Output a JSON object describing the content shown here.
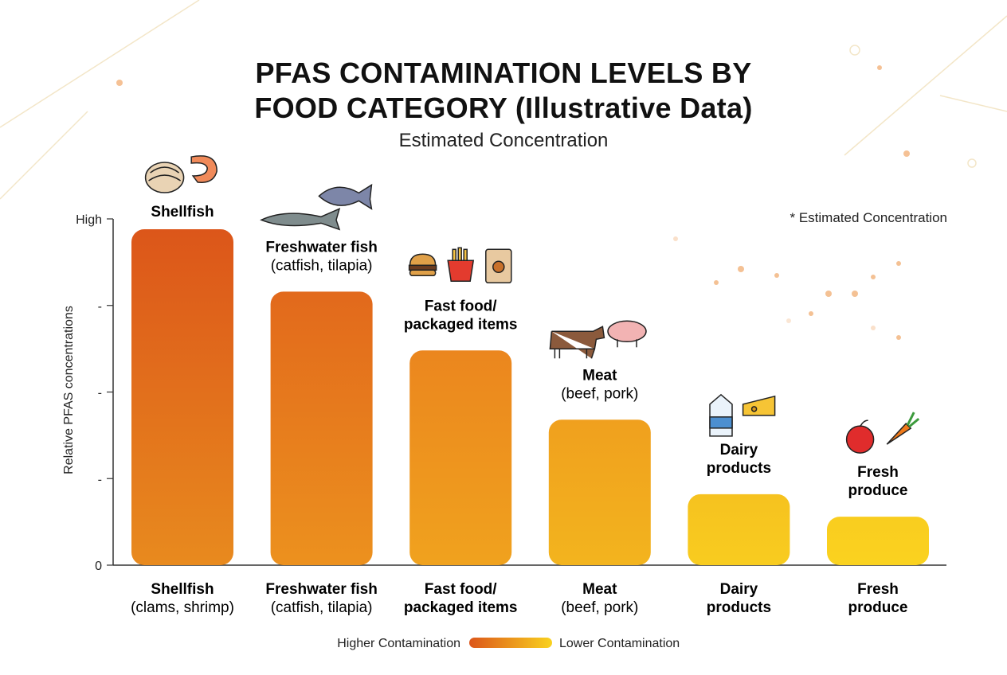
{
  "title_line1": "PFAS CONTAMINATION LEVELS BY",
  "title_line2": "FOOD CATEGORY (Illustrative Data)",
  "subtitle": "Estimated Concentration",
  "note": "* Estimated Concentration",
  "legend": {
    "high_label": "Higher Contamination",
    "low_label": "Lower Contamination",
    "gradient_colors": [
      "#dc561a",
      "#f9d21f"
    ]
  },
  "chart_data": {
    "type": "bar",
    "title": "PFAS CONTAMINATION LEVELS BY FOOD CATEGORY (Illustrative Data)",
    "subtitle": "Estimated Concentration",
    "ylabel": "Relative PFAS concentrations",
    "xlabel": "",
    "ylim": [
      0,
      100
    ],
    "y_tick_labels": [
      "0",
      "-",
      "-",
      "-",
      "High"
    ],
    "grid": false,
    "legend_placement": "bottom",
    "categories": [
      {
        "name": "Shellfish",
        "detail": "(clams, shrimp)",
        "top_name": "Shellfish",
        "top_detail": "",
        "icons": [
          "clam-icon",
          "shrimp-icon"
        ],
        "color_top": "#dc561a",
        "color_bottom": "#e88a1e"
      },
      {
        "name": "Freshwater fish",
        "detail": "(catfish, tilapia)",
        "top_name": "Freshwater fish",
        "top_detail": "(catfish, tilapia)",
        "icons": [
          "catfish-icon",
          "tilapia-icon"
        ],
        "color_top": "#e2691c",
        "color_bottom": "#ec911e"
      },
      {
        "name": "Fast food/",
        "detail": "packaged items",
        "top_name": "Fast food/",
        "top_detail": "packaged items",
        "bold_detail": true,
        "icons": [
          "burger-icon",
          "fries-icon",
          "bag-icon"
        ],
        "color_top": "#eb861e",
        "color_bottom": "#f0a21e"
      },
      {
        "name": "Meat",
        "detail": "(beef, pork)",
        "top_name": "Meat",
        "top_detail": "(beef, pork)",
        "icons": [
          "cow-icon",
          "pig-icon"
        ],
        "color_top": "#f0a01e",
        "color_bottom": "#f3b41e"
      },
      {
        "name": "Dairy",
        "detail": "products",
        "top_name": "Dairy",
        "top_detail": "products",
        "bold_detail": true,
        "icons": [
          "milk-icon",
          "cheese-icon"
        ],
        "color_top": "#f6c21f",
        "color_bottom": "#f8cc1f"
      },
      {
        "name": "Fresh",
        "detail": "produce",
        "top_name": "Fresh",
        "top_detail": "produce",
        "bold_detail": true,
        "icons": [
          "apple-icon",
          "carrot-icon"
        ],
        "color_top": "#f9cd1f",
        "color_bottom": "#fad21f"
      }
    ],
    "values": [
      97,
      79,
      62,
      42,
      20.5,
      14
    ]
  }
}
